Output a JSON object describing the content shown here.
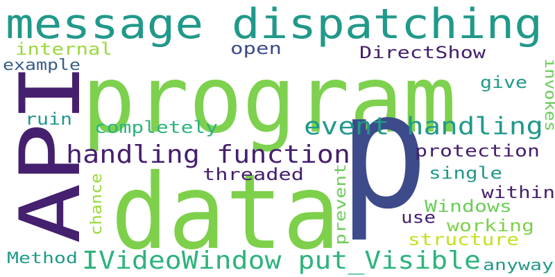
{
  "words": [
    {
      "text": "message dispatching",
      "color": "#21998a"
    },
    {
      "text": "program",
      "color": "#7dd14e"
    },
    {
      "text": "API",
      "color": "#45206e"
    },
    {
      "text": "data",
      "color": "#7ed04b"
    },
    {
      "text": "p",
      "color": "#3d4b8a"
    },
    {
      "text": "event handling",
      "color": "#21998a"
    },
    {
      "text": "handling function",
      "color": "#45206e"
    },
    {
      "text": "IVideoWindow put_Visible",
      "color": "#2eb37c"
    },
    {
      "text": "internal",
      "color": "#9ad93d"
    },
    {
      "text": "open",
      "color": "#3d4b8a"
    },
    {
      "text": "DirectShow",
      "color": "#45206e"
    },
    {
      "text": "example",
      "color": "#375d8c"
    },
    {
      "text": "give",
      "color": "#21998a"
    },
    {
      "text": "invokes",
      "color": "#6ccd5a"
    },
    {
      "text": "ruin",
      "color": "#21998a"
    },
    {
      "text": "completely",
      "color": "#2eb37c"
    },
    {
      "text": "protection",
      "color": "#45206e"
    },
    {
      "text": "threaded",
      "color": "#45206e"
    },
    {
      "text": "single",
      "color": "#21998a"
    },
    {
      "text": "within",
      "color": "#45206e"
    },
    {
      "text": "chance",
      "color": "#9ad93d"
    },
    {
      "text": "prevent",
      "color": "#6ccd5a"
    },
    {
      "text": "Windows",
      "color": "#6ccd5a"
    },
    {
      "text": "use",
      "color": "#45206e"
    },
    {
      "text": "working",
      "color": "#7ed04b"
    },
    {
      "text": "structure",
      "color": "#c5e021"
    },
    {
      "text": "Method",
      "color": "#21998a"
    },
    {
      "text": "anyway",
      "color": "#21998a"
    }
  ]
}
